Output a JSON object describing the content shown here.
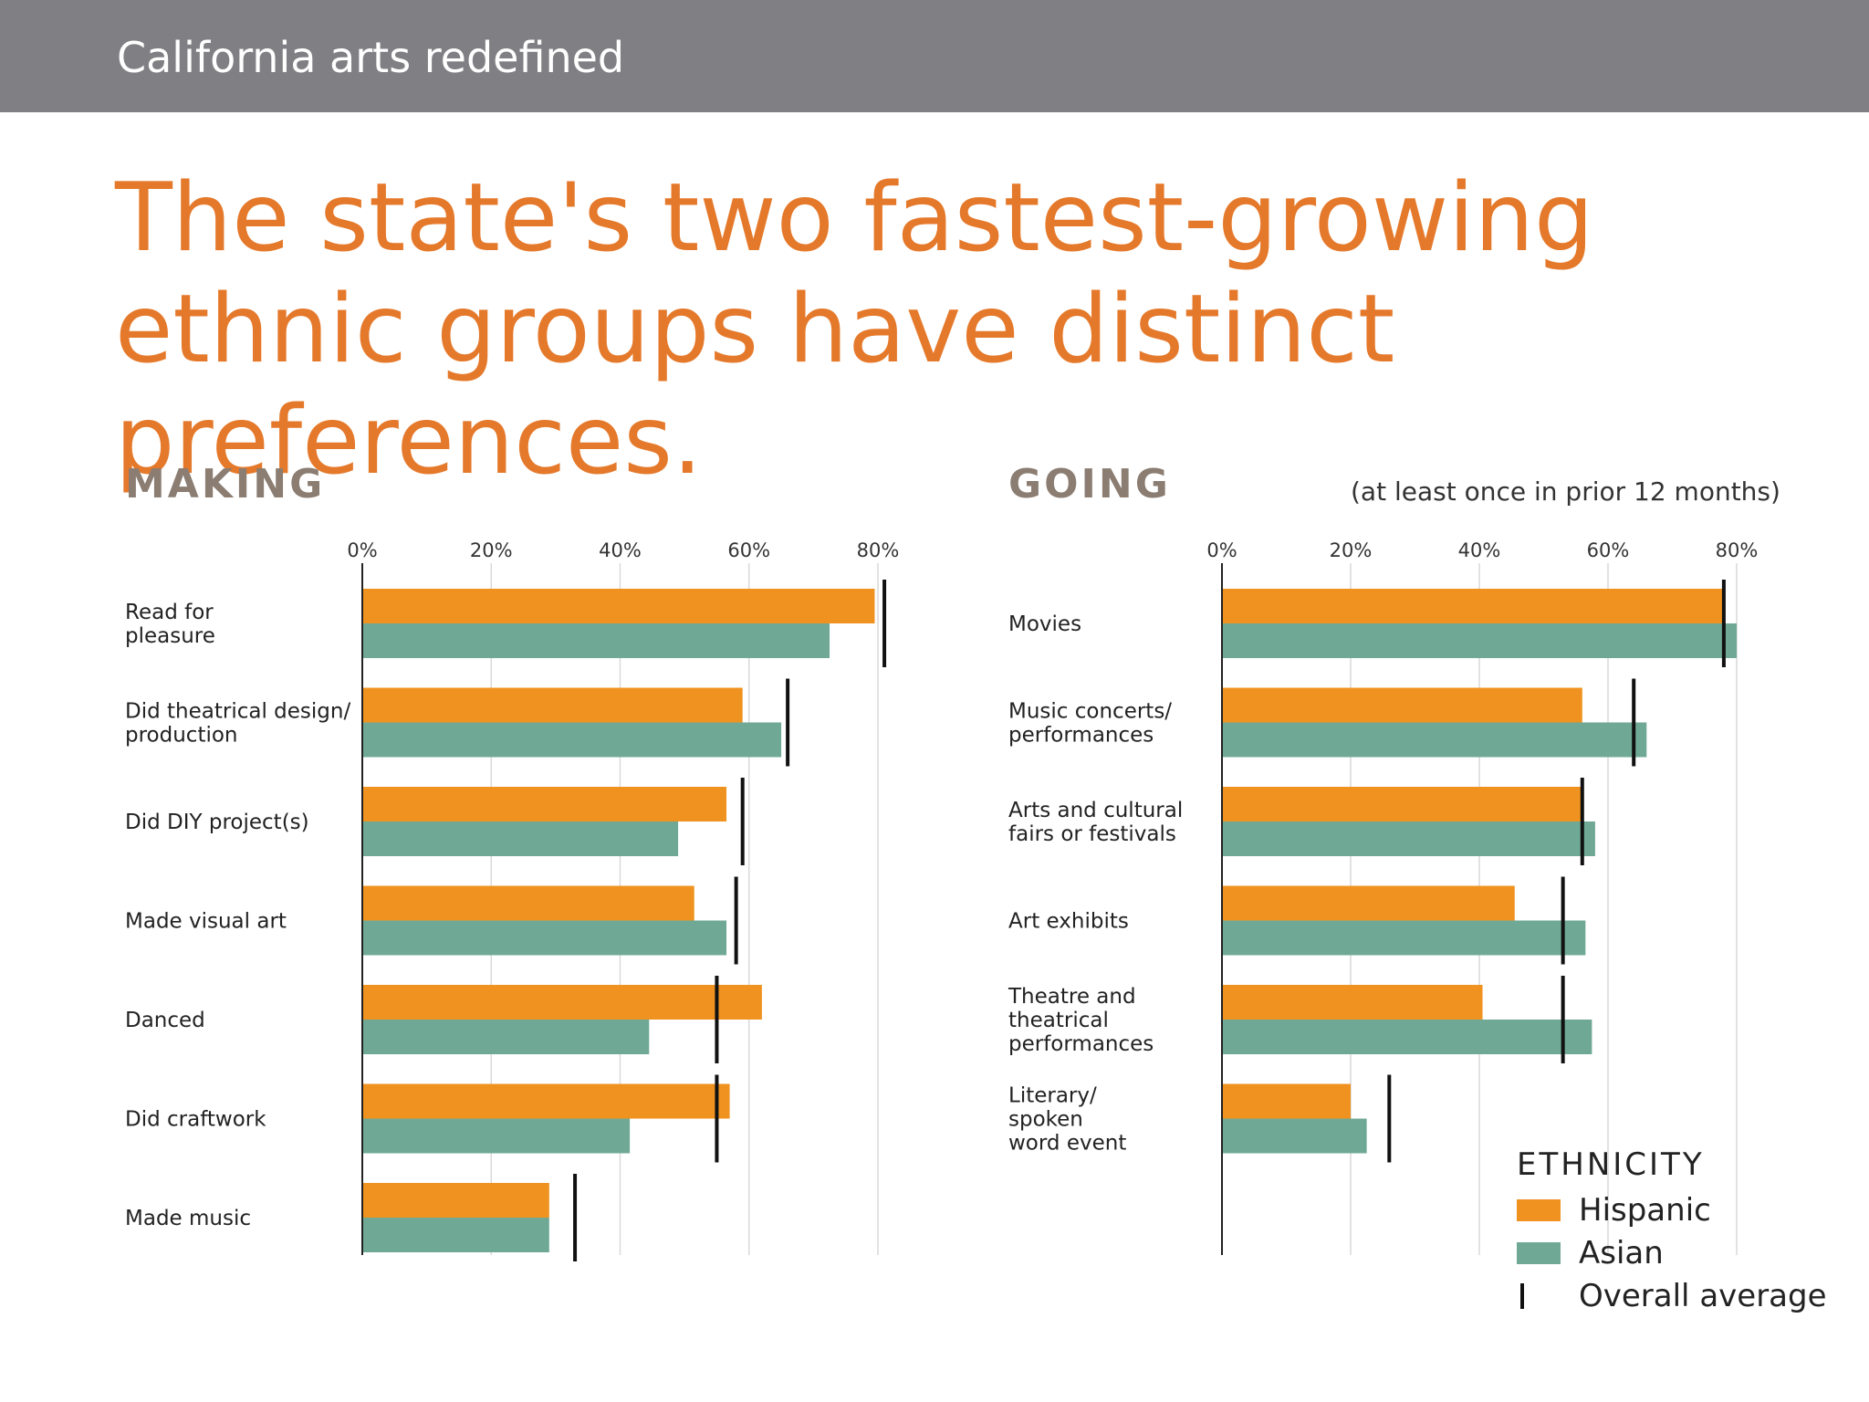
{
  "header": {
    "title": "California arts redefined"
  },
  "page_title": "The state's two fastest-growing ethnic groups have distinct preferences.",
  "colors": {
    "hispanic": "#f0921f",
    "asian": "#6fa996",
    "average": "#111111",
    "accent": "#e5792b",
    "header_bg": "#807f84"
  },
  "legend": {
    "title": "ETHNICITY",
    "items": [
      "Hispanic",
      "Asian",
      "Overall average"
    ]
  },
  "chart_data": [
    {
      "type": "bar",
      "title": "MAKING",
      "subtitle": "",
      "orientation": "horizontal",
      "xlim": [
        0,
        80
      ],
      "ticks": [
        "0%",
        "20%",
        "40%",
        "60%",
        "80%"
      ],
      "categories": [
        "Read for pleasure",
        "Did theatrical design/ production",
        "Did DIY project(s)",
        "Made visual art",
        "Danced",
        "Did craftwork",
        "Made music"
      ],
      "category_lines": [
        [
          "Read for",
          "pleasure"
        ],
        [
          "Did theatrical design/",
          "production"
        ],
        [
          "Did  DIY project(s)"
        ],
        [
          "Made visual art"
        ],
        [
          "Danced"
        ],
        [
          "Did craftwork"
        ],
        [
          "Made music"
        ]
      ],
      "series": [
        {
          "name": "Hispanic",
          "values": [
            79.5,
            59,
            56.5,
            51.5,
            62,
            57,
            29
          ]
        },
        {
          "name": "Asian",
          "values": [
            72.5,
            65,
            49,
            56.5,
            44.5,
            41.5,
            29
          ]
        },
        {
          "name": "Overall average",
          "values": [
            81,
            66,
            59,
            58,
            55,
            55,
            33
          ]
        }
      ],
      "grid": true,
      "legend_position": "bottom-right"
    },
    {
      "type": "bar",
      "title": "GOING",
      "subtitle": "(at least once in prior 12 months)",
      "orientation": "horizontal",
      "xlim": [
        0,
        80
      ],
      "ticks": [
        "0%",
        "20%",
        "40%",
        "60%",
        "80%"
      ],
      "categories": [
        "Movies",
        "Music concerts/ performances",
        "Arts and cultural fairs or festivals",
        "Art exhibits",
        "Theatre and theatrical performances",
        "Literary/ spoken word event"
      ],
      "category_lines": [
        [
          "Movies"
        ],
        [
          "Music concerts/",
          "performances"
        ],
        [
          "Arts and cultural",
          "fairs or festivals"
        ],
        [
          "Art exhibits"
        ],
        [
          "Theatre and",
          "theatrical",
          "performances"
        ],
        [
          "Literary/",
          "spoken",
          "word event"
        ]
      ],
      "series": [
        {
          "name": "Hispanic",
          "values": [
            78,
            56,
            56,
            45.5,
            40.5,
            20
          ]
        },
        {
          "name": "Asian",
          "values": [
            80,
            66,
            58,
            56.5,
            57.5,
            22.5
          ]
        },
        {
          "name": "Overall average",
          "values": [
            78,
            64,
            56,
            53,
            53,
            26
          ]
        }
      ],
      "grid": true,
      "legend_position": "bottom-right"
    }
  ]
}
